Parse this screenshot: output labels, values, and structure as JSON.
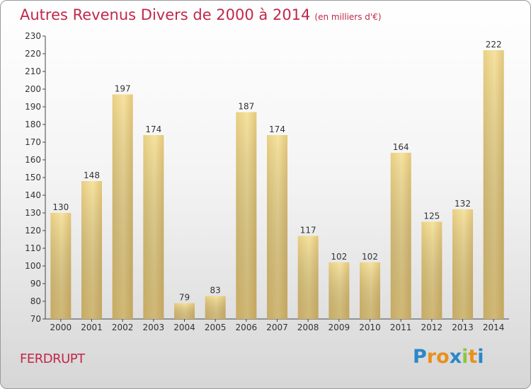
{
  "title": "Autres Revenus Divers de 2000 à 2014",
  "subtitle": "(en milliers d'€)",
  "commune": "FERDRUPT",
  "logo": {
    "letters": [
      "P",
      "r",
      "o",
      "x",
      "i",
      "t",
      "i"
    ],
    "colors": [
      "#2a87c8",
      "#e8901e",
      "#e8901e",
      "#2a87c8",
      "#8dc63f",
      "#e8901e",
      "#2a87c8"
    ]
  },
  "colors": {
    "title": "#c0284a",
    "bar_light": "#f6e3a0",
    "bar_dark": "#c2a45c"
  },
  "chart_data": {
    "type": "bar",
    "categories": [
      "2000",
      "2001",
      "2002",
      "2003",
      "2004",
      "2005",
      "2006",
      "2007",
      "2008",
      "2009",
      "2010",
      "2011",
      "2012",
      "2013",
      "2014"
    ],
    "values": [
      130,
      148,
      197,
      174,
      79,
      83,
      187,
      174,
      117,
      102,
      102,
      164,
      125,
      132,
      222
    ],
    "ylim": [
      70,
      230
    ],
    "yticks": [
      70,
      80,
      90,
      100,
      110,
      120,
      130,
      140,
      150,
      160,
      170,
      180,
      190,
      200,
      210,
      220,
      230
    ],
    "grid": false,
    "legend": "none"
  }
}
